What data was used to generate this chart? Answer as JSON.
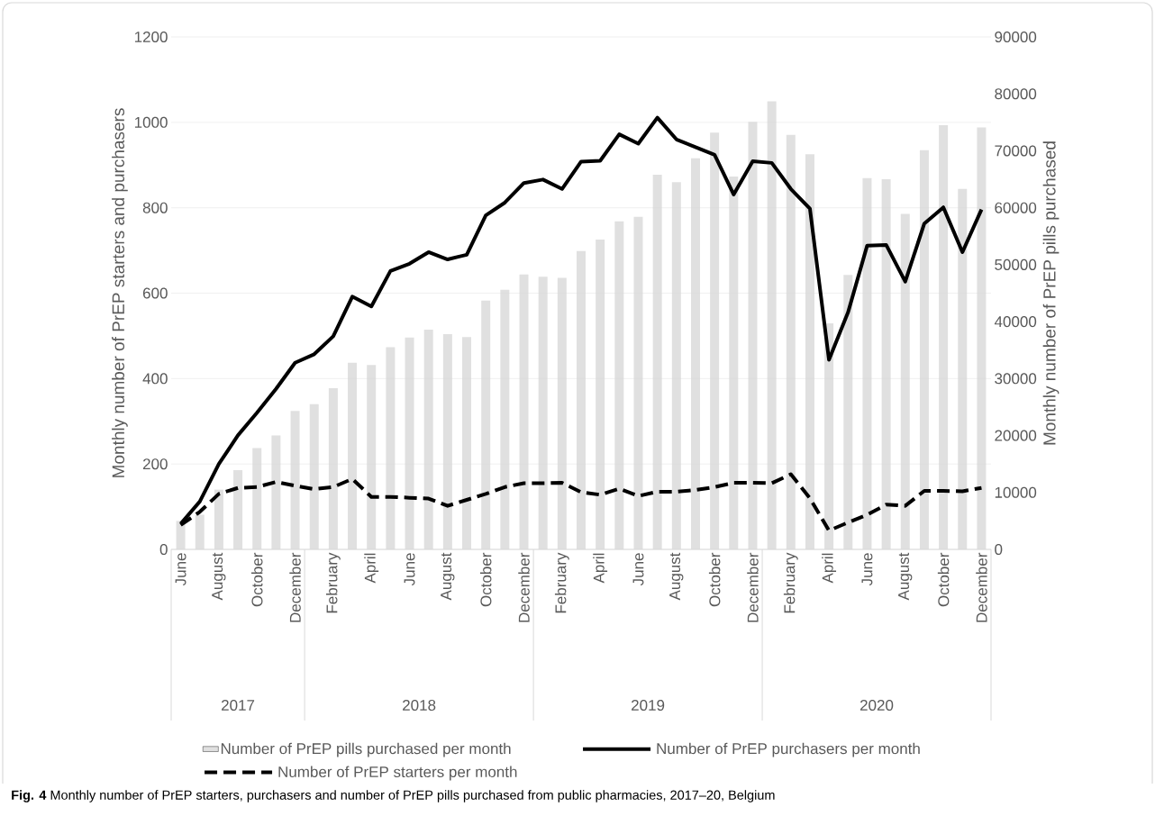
{
  "chart_data": {
    "type": "bar",
    "categories": [
      "June",
      null,
      "August",
      null,
      "October",
      null,
      "December",
      null,
      "February",
      null,
      "April",
      null,
      "June",
      null,
      "August",
      null,
      "October",
      null,
      "December",
      null,
      "February",
      null,
      "April",
      null,
      "June",
      null,
      "August",
      null,
      "October",
      null,
      "December",
      null,
      "February",
      null,
      "April",
      null,
      "June",
      null,
      "August",
      null,
      "October",
      null,
      "December"
    ],
    "series": [
      {
        "name": "Number of PrEP pills purchased per month",
        "axis": "y2",
        "color": "#e0e0e0",
        "values": [
          5000,
          6100,
          10500,
          13900,
          17800,
          20000,
          24300,
          25500,
          28300,
          32800,
          32400,
          35500,
          37200,
          38600,
          37800,
          37300,
          43700,
          45600,
          48300,
          47900,
          47700,
          52400,
          54400,
          57600,
          58400,
          65800,
          64500,
          68700,
          73200,
          65500,
          75100,
          78700,
          72800,
          69400,
          39700,
          48200,
          65200,
          65000,
          58900,
          70100,
          74500,
          63300,
          74100
        ]
      },
      {
        "name": "Number of PrEP purchasers per month",
        "type": "line",
        "line_style": "solid",
        "color": "#000000",
        "values": [
          60,
          112,
          200,
          267,
          320,
          376,
          437,
          457,
          499,
          592,
          569,
          652,
          669,
          696,
          679,
          690,
          782,
          812,
          858,
          866,
          844,
          908,
          910,
          972,
          950,
          1011,
          960,
          942,
          924,
          831,
          909,
          905,
          844,
          798,
          444,
          555,
          711,
          713,
          627,
          763,
          801,
          696,
          796
        ]
      },
      {
        "name": "Number of PrEP starters per month",
        "type": "line",
        "line_style": "dashed",
        "color": "#000000",
        "values": [
          57,
          88,
          130,
          144,
          146,
          158,
          149,
          141,
          146,
          165,
          123,
          123,
          121,
          119,
          102,
          116,
          130,
          146,
          155,
          155,
          156,
          134,
          128,
          142,
          125,
          135,
          135,
          139,
          146,
          156,
          156,
          155,
          176,
          120,
          44,
          63,
          81,
          105,
          102,
          137,
          137,
          136,
          144
        ]
      }
    ],
    "ylabel": "Monthly number of PrEP starters and purchasers",
    "y2label": "Monthly number of PrEP pills purchased",
    "ylim": [
      0,
      1200
    ],
    "yticks": [
      0,
      200,
      400,
      600,
      800,
      1000,
      1200
    ],
    "y2lim": [
      0,
      90000
    ],
    "y2ticks": [
      0,
      10000,
      20000,
      30000,
      40000,
      50000,
      60000,
      70000,
      80000,
      90000
    ],
    "grid": "y",
    "legend": "bottom",
    "annotations": [
      "2017",
      "2018",
      "2019",
      "2020",
      "**Fig. 4** Monthly number of PrEP starters, purchasers and number of PrEP pills purchased from public pharmacies, 2017–20, Belgium"
    ]
  }
}
